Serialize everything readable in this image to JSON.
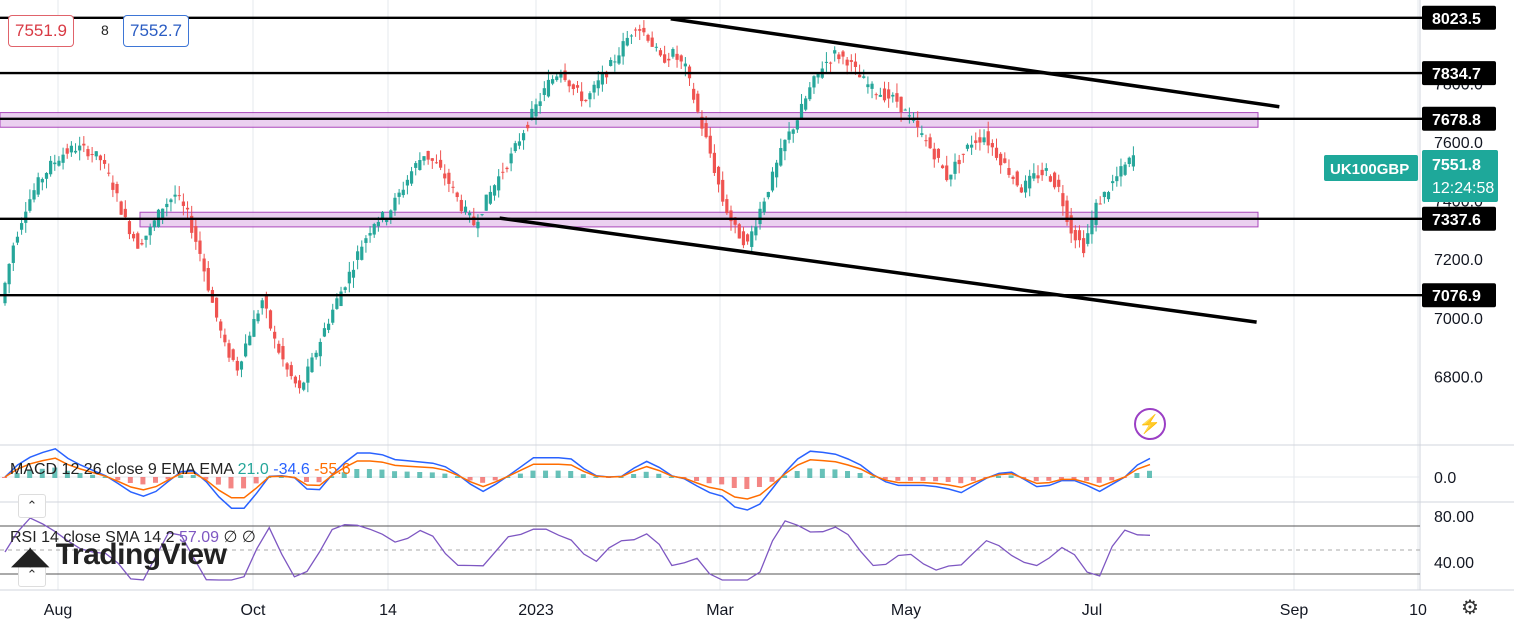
{
  "header": {
    "bid": "7551.9",
    "spread": "8",
    "ask": "7552.7"
  },
  "symbol": {
    "name": "UK100GBP",
    "price": "7551.8",
    "countdown": "12:24:58"
  },
  "indicators": {
    "macd": {
      "label": "MACD 12 26 close 9 EMA EMA",
      "v1": "21.0",
      "v2": "-34.6",
      "v3": "-55.6"
    },
    "rsi": {
      "label": "RSI 14 close SMA 14 2",
      "v1": "57.09",
      "v2": "∅",
      "v3": "∅"
    }
  },
  "watermark": "TradingView",
  "colors": {
    "up": "#26a69a",
    "down": "#ef5350",
    "zone": "#e8c8ee",
    "zone_border": "#9c27b0",
    "macd": "#2962ff",
    "signal": "#ff6d00",
    "rsi": "#7e57c2",
    "label_bg": "#1ea89a"
  },
  "chart_data": {
    "type": "candlestick",
    "symbol": "UK100GBP",
    "x_ticks": [
      "Aug",
      "Oct",
      "14",
      "2023",
      "Mar",
      "May",
      "Jul",
      "Sep",
      "10"
    ],
    "y_ticks": [
      "7000.0",
      "7200.0",
      "7400.0",
      "7600.0",
      "7800.0",
      "6800.0"
    ],
    "ylim": [
      6600,
      8050
    ],
    "horizontal_levels": [
      8023.5,
      7834.7,
      7678.8,
      7337.6,
      7076.9
    ],
    "level_labels": [
      "8023.5",
      "7834.7",
      "7678.8",
      "7337.6",
      "7076.9"
    ],
    "zones": [
      {
        "low": 7650,
        "high": 7700
      },
      {
        "low": 7310,
        "high": 7360
      }
    ],
    "trendlines": [
      {
        "from": [
          0.443,
          8020
        ],
        "to": [
          0.845,
          7720
        ]
      },
      {
        "from": [
          0.33,
          7340
        ],
        "to": [
          0.83,
          6985
        ]
      }
    ],
    "close_path": [
      7050,
      7250,
      7380,
      7460,
      7520,
      7560,
      7580,
      7570,
      7540,
      7450,
      7330,
      7250,
      7300,
      7380,
      7420,
      7350,
      7220,
      7050,
      6900,
      6830,
      6950,
      7060,
      6920,
      6820,
      6750,
      6850,
      6960,
      7060,
      7150,
      7250,
      7330,
      7350,
      7420,
      7500,
      7560,
      7520,
      7460,
      7380,
      7320,
      7400,
      7480,
      7550,
      7640,
      7720,
      7800,
      7850,
      7780,
      7740,
      7800,
      7860,
      7930,
      8000,
      7960,
      7880,
      7900,
      7850,
      7700,
      7560,
      7400,
      7300,
      7250,
      7370,
      7480,
      7600,
      7680,
      7780,
      7860,
      7900,
      7880,
      7820,
      7780,
      7760,
      7740,
      7680,
      7620,
      7560,
      7480,
      7540,
      7600,
      7620,
      7560,
      7500,
      7440,
      7480,
      7500,
      7440,
      7300,
      7240,
      7380,
      7440,
      7500,
      7550
    ],
    "macd_ticks": [
      "0.0"
    ],
    "rsi_ticks": [
      "80.00",
      "40.00"
    ]
  }
}
